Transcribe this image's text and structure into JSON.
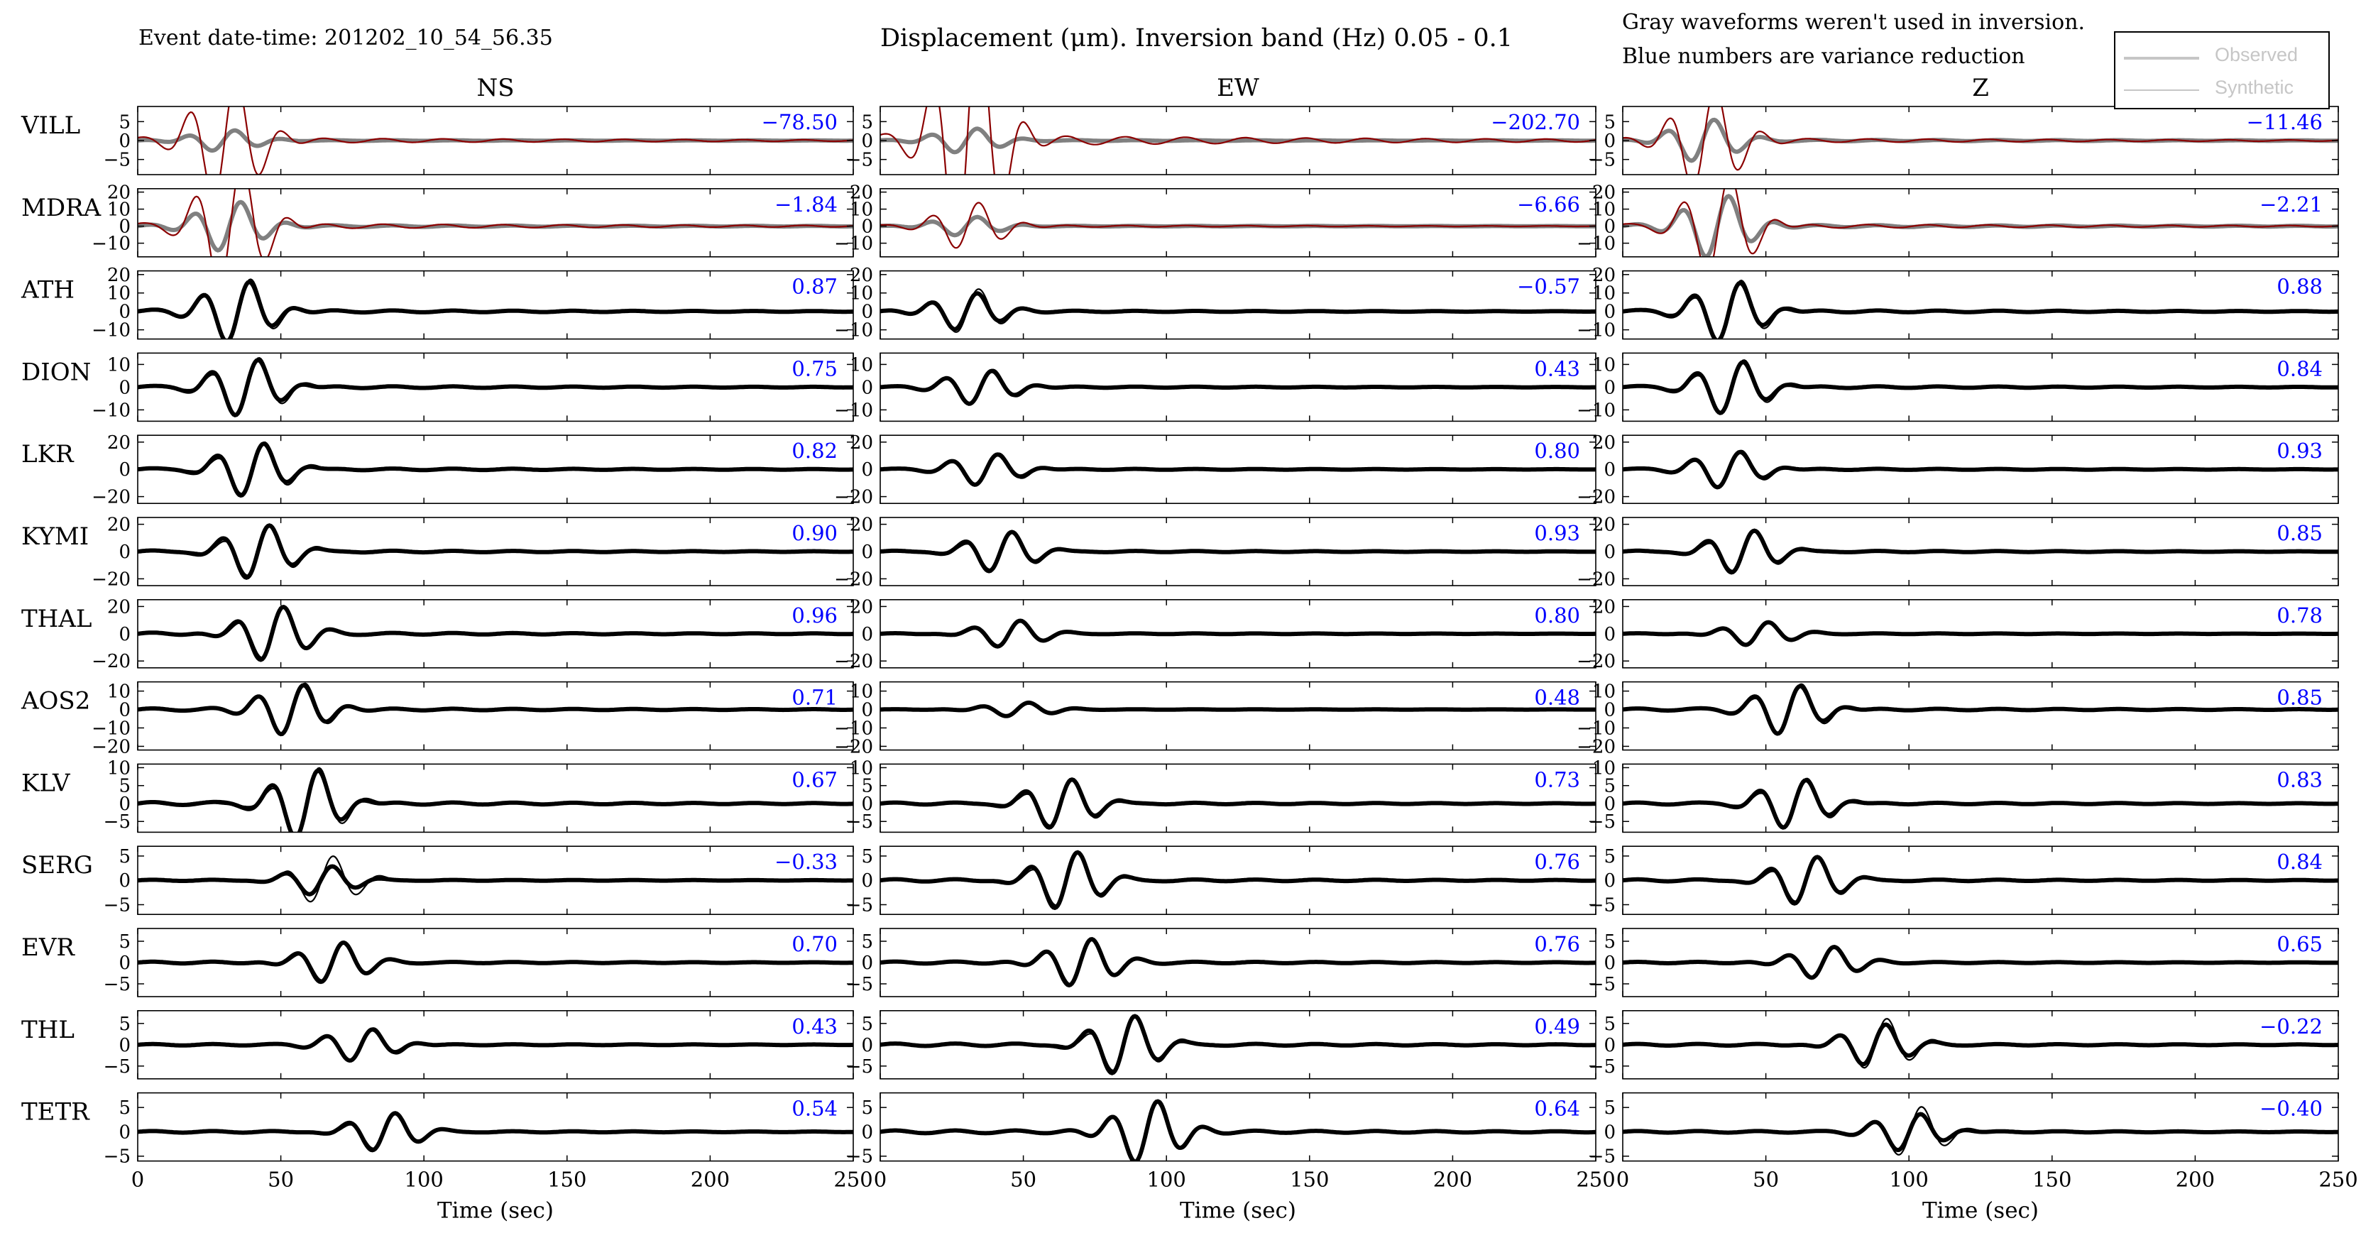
{
  "header": {
    "event": "Event date-time: 201202_10_54_56.35",
    "title_text": "Displacement (μm). Inversion band (Hz) 0.05 - 0.1",
    "note_line1": "Gray waveforms weren't used in inversion.",
    "note_line2": "Blue numbers are variance reduction"
  },
  "legend": {
    "observed": "Observed",
    "synthetic": "Synthetic"
  },
  "colors": {
    "used": "#000000",
    "unused_observed": "#808080",
    "unused_synthetic": "#8b0000",
    "variance": "#0000ff",
    "legend_text": "#c6c6c6"
  },
  "chart_data": {
    "type": "line",
    "title": "Displacement (μm). Inversion band (Hz) 0.05 - 0.1",
    "components": [
      "NS",
      "EW",
      "Z"
    ],
    "xlabel": "Time (sec)",
    "xlim": [
      0,
      250
    ],
    "xticks": [
      0,
      50,
      100,
      150,
      200,
      250
    ],
    "stations": [
      {
        "name": "VILL",
        "used": false,
        "yticks": [
          -5,
          0,
          5
        ],
        "ylim": [
          -9,
          9
        ],
        "vr": [
          "−78.50",
          "−202.70",
          "−11.46"
        ],
        "obs_amp": [
          3,
          3.5,
          6
        ],
        "peak": [
          30,
          30,
          28
        ],
        "syn_gain": [
          6,
          10,
          2.5
        ]
      },
      {
        "name": "MDRA",
        "used": false,
        "yticks": [
          -10,
          0,
          10,
          20
        ],
        "ylim": [
          -18,
          22
        ],
        "vr": [
          "−1.84",
          "−6.66",
          "−2.21"
        ],
        "obs_amp": [
          16,
          6,
          20
        ],
        "peak": [
          32,
          30,
          33
        ],
        "syn_gain": [
          2.5,
          2.5,
          1.6
        ]
      },
      {
        "name": "ATH",
        "used": true,
        "yticks": [
          -10,
          0,
          10,
          20
        ],
        "ylim": [
          -15,
          22
        ],
        "vr": [
          "0.87",
          "−0.57",
          "0.88"
        ],
        "obs_amp": [
          18,
          11,
          17
        ],
        "peak": [
          35,
          30,
          37
        ],
        "syn_gain": [
          1,
          1.2,
          1
        ]
      },
      {
        "name": "DION",
        "used": true,
        "yticks": [
          -10,
          0,
          10
        ],
        "ylim": [
          -15,
          15
        ],
        "vr": [
          "0.75",
          "0.43",
          "0.84"
        ],
        "obs_amp": [
          13,
          8,
          12
        ],
        "peak": [
          38,
          35,
          38
        ],
        "syn_gain": [
          1,
          1,
          1
        ]
      },
      {
        "name": "LKR",
        "used": true,
        "yticks": [
          -20,
          0,
          20
        ],
        "ylim": [
          -25,
          25
        ],
        "vr": [
          "0.82",
          "0.80",
          "0.93"
        ],
        "obs_amp": [
          20,
          12,
          14
        ],
        "peak": [
          40,
          37,
          37
        ],
        "syn_gain": [
          1,
          1,
          1
        ]
      },
      {
        "name": "KYMI",
        "used": true,
        "yticks": [
          -20,
          0,
          20
        ],
        "ylim": [
          -25,
          25
        ],
        "vr": [
          "0.90",
          "0.93",
          "0.85"
        ],
        "obs_amp": [
          20,
          15,
          16
        ],
        "peak": [
          42,
          42,
          42
        ],
        "syn_gain": [
          1,
          1,
          1
        ]
      },
      {
        "name": "THAL",
        "used": true,
        "yticks": [
          -20,
          0,
          20
        ],
        "ylim": [
          -25,
          25
        ],
        "vr": [
          "0.96",
          "0.80",
          "0.78"
        ],
        "obs_amp": [
          21,
          10,
          9
        ],
        "peak": [
          47,
          45,
          47
        ],
        "syn_gain": [
          1,
          1,
          1
        ]
      },
      {
        "name": "AOS2",
        "used": true,
        "yticks": [
          -20,
          -10,
          0,
          10
        ],
        "ylim": [
          -22,
          15
        ],
        "vr": [
          "0.71",
          "0.48",
          "0.85"
        ],
        "obs_amp": [
          15,
          4,
          14
        ],
        "peak": [
          54,
          48,
          58
        ],
        "syn_gain": [
          1,
          1,
          1
        ]
      },
      {
        "name": "KLV",
        "used": true,
        "yticks": [
          -5,
          0,
          5,
          10
        ],
        "ylim": [
          -8,
          11
        ],
        "vr": [
          "0.67",
          "0.73",
          "0.83"
        ],
        "obs_amp": [
          10,
          7,
          7
        ],
        "peak": [
          59,
          63,
          60
        ],
        "syn_gain": [
          1,
          1,
          1
        ]
      },
      {
        "name": "SERG",
        "used": true,
        "yticks": [
          -5,
          0,
          5
        ],
        "ylim": [
          -7,
          7
        ],
        "vr": [
          "−0.33",
          "0.76",
          "0.84"
        ],
        "obs_amp": [
          3,
          6,
          5
        ],
        "peak": [
          64,
          65,
          64
        ],
        "syn_gain": [
          1.7,
          1,
          1
        ]
      },
      {
        "name": "EVR",
        "used": true,
        "yticks": [
          -5,
          0,
          5
        ],
        "ylim": [
          -8,
          8
        ],
        "vr": [
          "0.70",
          "0.76",
          "0.65"
        ],
        "obs_amp": [
          5,
          6,
          4
        ],
        "peak": [
          68,
          70,
          70
        ],
        "syn_gain": [
          1,
          1,
          1
        ]
      },
      {
        "name": "THL",
        "used": true,
        "yticks": [
          -5,
          0,
          5
        ],
        "ylim": [
          -8,
          8
        ],
        "vr": [
          "0.43",
          "0.49",
          "−0.22"
        ],
        "obs_amp": [
          4,
          7,
          5
        ],
        "peak": [
          78,
          85,
          88
        ],
        "syn_gain": [
          1,
          1,
          1.3
        ]
      },
      {
        "name": "TETR",
        "used": true,
        "yticks": [
          -5,
          0,
          5
        ],
        "ylim": [
          -6,
          8
        ],
        "vr": [
          "0.54",
          "0.64",
          "−0.40"
        ],
        "obs_amp": [
          4,
          7,
          4
        ],
        "peak": [
          86,
          93,
          100
        ],
        "syn_gain": [
          1,
          1,
          1.3
        ]
      }
    ]
  }
}
